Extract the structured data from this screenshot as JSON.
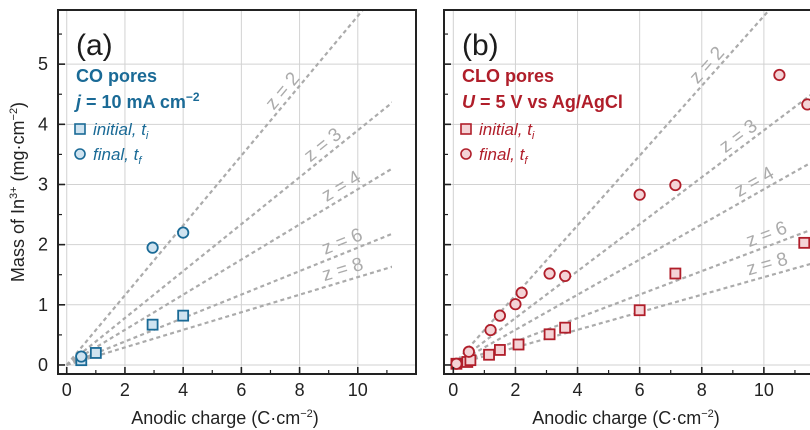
{
  "colors": {
    "panel_a": "#1a6a96",
    "panel_b": "#b01e2a",
    "panel_a_fill": "#cfe3f0",
    "panel_b_fill": "#f4d3d6",
    "guide": "#ababab",
    "frame": "#222222",
    "grid": "#d2d2d2"
  },
  "shared": {
    "ylabel_main": "Mass of In",
    "ylabel_sup": "3+",
    "ylabel_units": " (mg·cm",
    "ylabel_units_sup": "−2",
    "ylabel_close": ")",
    "xlabel": "Anodic charge (C·cm",
    "xlabel_sup": "−2",
    "xlabel_close": ")",
    "guide_prefix": "z = "
  },
  "chart_data": [
    {
      "type": "scatter",
      "panel_label": "(a)",
      "title": "CO pores",
      "subtitle": {
        "sym": "j",
        "rest": " = 10 mA cm",
        "sup": "−2"
      },
      "xlim": [
        -0.3,
        12
      ],
      "ylim": [
        -0.15,
        5.9
      ],
      "xticks": [
        0,
        2,
        4,
        6,
        8,
        10
      ],
      "yticks": [
        0,
        1,
        2,
        3,
        4,
        5
      ],
      "grid": true,
      "legend_position": "top-left",
      "guides": [
        {
          "z": "2",
          "slope": 0.58
        },
        {
          "z": "3",
          "slope": 0.39
        },
        {
          "z": "4",
          "slope": 0.292
        },
        {
          "z": "6",
          "slope": 0.195
        },
        {
          "z": "8",
          "slope": 0.146
        }
      ],
      "series": [
        {
          "name": "initial, ",
          "sub": "i",
          "marker": "square",
          "x": [
            0.5,
            1.0,
            2.95,
            4.0
          ],
          "y": [
            0.08,
            0.2,
            0.67,
            0.82
          ]
        },
        {
          "name": "final, ",
          "sub": "f",
          "marker": "circle",
          "x": [
            0.5,
            2.95,
            4.0
          ],
          "y": [
            0.14,
            1.95,
            2.2
          ]
        }
      ]
    },
    {
      "type": "scatter",
      "panel_label": "(b)",
      "title": "CLO pores",
      "subtitle": {
        "sym": "U",
        "rest": " = 5 V vs Ag/AgCl",
        "sup": ""
      },
      "xlim": [
        -0.3,
        12
      ],
      "ylim": [
        -0.15,
        5.9
      ],
      "xticks": [
        0,
        2,
        4,
        6,
        8,
        10
      ],
      "yticks": [
        0,
        1,
        2,
        3,
        4,
        5
      ],
      "grid": true,
      "legend_position": "top-left",
      "guides": [
        {
          "z": "2",
          "slope": 0.58
        },
        {
          "z": "3",
          "slope": 0.39
        },
        {
          "z": "4",
          "slope": 0.292
        },
        {
          "z": "6",
          "slope": 0.195
        },
        {
          "z": "8",
          "slope": 0.146
        }
      ],
      "series": [
        {
          "name": "initial, ",
          "sub": "i",
          "marker": "square",
          "x": [
            0.1,
            0.45,
            0.55,
            1.15,
            1.5,
            2.1,
            3.1,
            3.6,
            6.0,
            7.15,
            11.3,
            11.8
          ],
          "y": [
            0.02,
            0.05,
            0.08,
            0.17,
            0.25,
            0.34,
            0.51,
            0.62,
            0.91,
            1.52,
            2.03,
            2.12
          ]
        },
        {
          "name": "final, ",
          "sub": "f",
          "marker": "circle",
          "x": [
            0.1,
            0.5,
            1.2,
            1.5,
            2.0,
            2.2,
            3.1,
            3.6,
            6.0,
            7.15,
            10.5,
            11.4
          ],
          "y": [
            0.02,
            0.22,
            0.58,
            0.82,
            1.01,
            1.2,
            1.52,
            1.48,
            2.83,
            2.99,
            4.82,
            4.33
          ]
        }
      ]
    }
  ]
}
